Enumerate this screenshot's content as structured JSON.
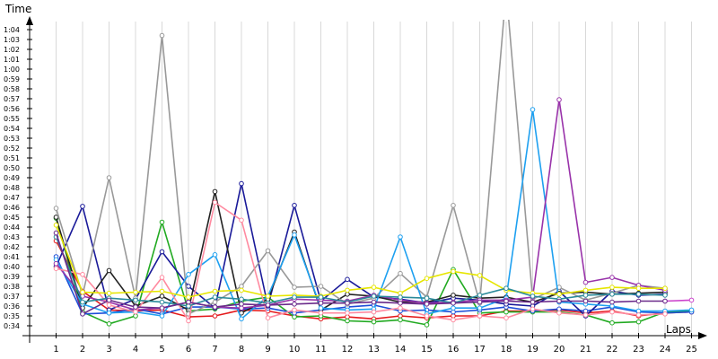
{
  "chart_data": {
    "type": "line",
    "ylabel": "Time",
    "xlabel": "Laps",
    "x": [
      1,
      2,
      3,
      4,
      5,
      6,
      7,
      8,
      9,
      10,
      11,
      12,
      13,
      14,
      15,
      16,
      17,
      18,
      19,
      20,
      21,
      22,
      23,
      24,
      25
    ],
    "xlim": [
      0,
      25.5
    ],
    "ylim": [
      33,
      65
    ],
    "y_tick_values": [
      34,
      35,
      36,
      37,
      38,
      39,
      40,
      41,
      42,
      43,
      44,
      45,
      46,
      47,
      48,
      49,
      50,
      51,
      52,
      53,
      54,
      55,
      56,
      57,
      58,
      59,
      60,
      61,
      62,
      63,
      64
    ],
    "y_tick_labels": [
      "0:34",
      "0:35",
      "0:36",
      "0:37",
      "0:38",
      "0:39",
      "0:40",
      "0:41",
      "0:42",
      "0:43",
      "0:44",
      "0:45",
      "0:46",
      "0:47",
      "0:48",
      "0:49",
      "0:50",
      "0:51",
      "0:52",
      "0:53",
      "0:54",
      "0:55",
      "0:56",
      "0:57",
      "0:58",
      "0:59",
      "1:00",
      "1:01",
      "1:02",
      "1:03",
      "1:04"
    ],
    "x_tick_labels": [
      "1",
      "2",
      "3",
      "4",
      "5",
      "6",
      "7",
      "8",
      "9",
      "10",
      "11",
      "12",
      "13",
      "14",
      "15",
      "16",
      "17",
      "18",
      "19",
      "20",
      "21",
      "22",
      "23",
      "24",
      "25"
    ],
    "grid": "vertical",
    "colors": {
      "grid": "#d8d8d8",
      "axis": "#000000",
      "red": "#e41a1c",
      "green": "#22aa22",
      "blue": "#1e4fd8",
      "navy": "#1a1a99",
      "black": "#222222",
      "gray": "#999999",
      "lightblue": "#1ea0f0",
      "purple": "#9933aa",
      "pink": "#ff8aa0",
      "yellow": "#e6e600",
      "magenta": "#cc44cc",
      "teal": "#2a8a9a",
      "darkpurple": "#6a2a8a"
    },
    "series": [
      {
        "color": "red",
        "values": [
          42.6,
          37.5,
          35.6,
          35.5,
          35.6,
          34.9,
          35.0,
          35.6,
          35.5,
          35.0,
          34.7,
          34.9,
          34.7,
          35.0,
          34.8,
          35.0,
          35.0,
          35.5,
          35.5,
          35.6,
          35.3,
          35.5,
          35.0,
          35.3,
          35.4
        ]
      },
      {
        "color": "green",
        "values": [
          44.9,
          35.4,
          34.2,
          35.0,
          44.5,
          35.5,
          35.7,
          36.5,
          36.9,
          34.9,
          35.0,
          34.5,
          34.4,
          34.6,
          34.1,
          39.7,
          35.3,
          35.4,
          35.4,
          35.4,
          35.1,
          34.3,
          34.4,
          35.4,
          35.5
        ]
      },
      {
        "color": "blue",
        "values": [
          41.0,
          35.2,
          35.3,
          35.7,
          35.2,
          35.9,
          35.9,
          35.7,
          35.8,
          35.3,
          35.6,
          35.9,
          36.1,
          35.5,
          35.6,
          35.4,
          35.6,
          35.9,
          35.5,
          35.7,
          35.5,
          35.9,
          35.4,
          35.3,
          35.4
        ]
      },
      {
        "color": "navy",
        "values": [
          40.0,
          46.1,
          35.6,
          36.7,
          41.5,
          38.0,
          35.8,
          48.4,
          36.0,
          46.2,
          36.5,
          38.7,
          36.9,
          36.7,
          36.3,
          36.8,
          36.6,
          36.2,
          36.0,
          37.5,
          35.0,
          37.5,
          37.1,
          37.2,
          null
        ]
      },
      {
        "color": "black",
        "values": [
          45.0,
          35.8,
          39.6,
          36.0,
          37.0,
          35.6,
          47.6,
          35.3,
          36.7,
          43.5,
          35.6,
          37.2,
          37.0,
          36.4,
          36.4,
          37.1,
          36.8,
          36.9,
          36.4,
          37.3,
          37.4,
          37.2,
          37.3,
          37.4,
          null
        ]
      },
      {
        "color": "gray",
        "values": [
          45.9,
          37.1,
          49.0,
          36.8,
          63.4,
          35.2,
          36.4,
          38.0,
          41.6,
          37.9,
          38.0,
          36.2,
          36.8,
          39.3,
          36.9,
          46.2,
          36.3,
          68.0,
          36.7,
          37.9,
          36.6,
          37.3,
          38.1,
          37.8,
          null
        ]
      },
      {
        "color": "lightblue",
        "values": [
          40.7,
          36.2,
          35.3,
          35.4,
          35.0,
          39.2,
          41.2,
          34.7,
          37.0,
          43.2,
          35.8,
          35.6,
          35.7,
          43.0,
          35.2,
          35.8,
          35.8,
          36.8,
          55.9,
          36.4,
          36.2,
          36.0,
          35.5,
          35.5,
          35.6
        ]
      },
      {
        "color": "purple",
        "values": [
          40.3,
          37.0,
          36.4,
          35.6,
          35.8,
          36.4,
          35.9,
          35.8,
          36.1,
          36.7,
          36.6,
          36.5,
          37.1,
          36.6,
          36.3,
          36.4,
          36.6,
          36.6,
          36.9,
          56.9,
          38.4,
          38.9,
          38.1,
          37.6,
          null
        ]
      },
      {
        "color": "pink",
        "values": [
          39.8,
          39.2,
          36.1,
          35.4,
          38.9,
          34.5,
          46.5,
          44.7,
          34.8,
          35.6,
          35.3,
          35.3,
          35.4,
          35.8,
          35.0,
          34.6,
          35.0,
          34.8,
          35.7,
          35.3,
          35.1,
          35.4,
          35.1,
          35.2,
          null
        ]
      },
      {
        "color": "yellow",
        "values": [
          44.2,
          37.4,
          37.3,
          37.4,
          37.5,
          36.9,
          37.5,
          37.6,
          37.0,
          37.1,
          37.0,
          37.6,
          37.9,
          37.3,
          38.8,
          39.5,
          39.1,
          37.6,
          37.3,
          37.2,
          37.6,
          37.9,
          37.8,
          37.8,
          null
        ]
      },
      {
        "color": "magenta",
        "values": [
          null,
          null,
          null,
          null,
          null,
          null,
          null,
          null,
          null,
          null,
          null,
          null,
          null,
          null,
          null,
          null,
          null,
          null,
          null,
          null,
          null,
          null,
          null,
          36.5,
          36.6
        ]
      },
      {
        "color": "teal",
        "values": [
          43.0,
          36.4,
          36.8,
          36.6,
          36.4,
          36.0,
          36.9,
          36.7,
          36.3,
          36.9,
          36.9,
          36.4,
          37.0,
          36.9,
          36.8,
          36.3,
          37.1,
          37.8,
          37.0,
          36.7,
          37.1,
          37.2,
          37.2,
          37.1,
          null
        ]
      },
      {
        "color": "darkpurple",
        "values": [
          43.4,
          35.2,
          36.6,
          35.9,
          35.8,
          36.4,
          35.9,
          36.2,
          36.1,
          36.2,
          36.3,
          36.3,
          36.4,
          36.3,
          36.2,
          36.3,
          36.4,
          36.5,
          36.4,
          36.5,
          36.5,
          36.4,
          36.5,
          36.5,
          null
        ]
      }
    ]
  }
}
